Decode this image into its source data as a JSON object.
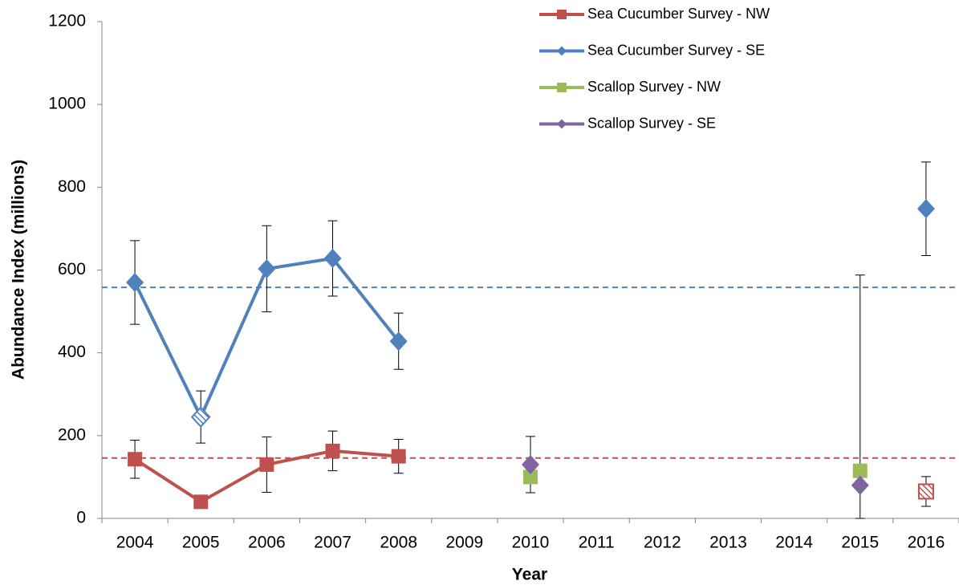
{
  "chart_data": {
    "type": "line",
    "x_label": "Year",
    "y_label": "Abundance Index (millions)",
    "categories": [
      "2004",
      "2005",
      "2006",
      "2007",
      "2008",
      "2009",
      "2010",
      "2011",
      "2012",
      "2013",
      "2014",
      "2015",
      "2016"
    ],
    "ylim": [
      0,
      1200
    ],
    "yticks": [
      0,
      200,
      400,
      600,
      800,
      1000,
      1200
    ],
    "legend": "top-right",
    "series": [
      {
        "name": "Sea Cucumber Survey - NW",
        "color": "#c0504d",
        "marker": "square",
        "line": true,
        "values": [
          143,
          40,
          130,
          163,
          150,
          null,
          null,
          null,
          null,
          null,
          null,
          null,
          65
        ],
        "errors": [
          46,
          null,
          67,
          48,
          41,
          null,
          null,
          null,
          null,
          null,
          null,
          null,
          36
        ],
        "hatched": [
          false,
          false,
          false,
          false,
          false,
          false,
          false,
          false,
          false,
          false,
          false,
          false,
          true
        ]
      },
      {
        "name": "Sea Cucumber Survey - SE",
        "color": "#4f81bd",
        "marker": "diamond",
        "line": true,
        "values": [
          570,
          245,
          603,
          628,
          428,
          null,
          null,
          null,
          null,
          null,
          null,
          null,
          748
        ],
        "errors": [
          101,
          63,
          104,
          91,
          68,
          null,
          null,
          null,
          null,
          null,
          null,
          null,
          113
        ],
        "hatched": [
          false,
          true,
          false,
          false,
          false,
          false,
          false,
          false,
          false,
          false,
          false,
          false,
          false
        ]
      },
      {
        "name": "Scallop Survey - NW",
        "color": "#9bbb59",
        "marker": "square",
        "line": false,
        "values": [
          null,
          null,
          null,
          null,
          null,
          null,
          100,
          null,
          null,
          null,
          null,
          115,
          null
        ],
        "errors": [
          null,
          null,
          null,
          null,
          null,
          null,
          null,
          null,
          null,
          null,
          null,
          473,
          null
        ],
        "hatched": [
          false,
          false,
          false,
          false,
          false,
          false,
          false,
          false,
          false,
          false,
          false,
          false,
          false
        ]
      },
      {
        "name": "Scallop Survey - SE",
        "color": "#8064a2",
        "marker": "diamond",
        "line": false,
        "values": [
          null,
          null,
          null,
          null,
          null,
          null,
          130,
          null,
          null,
          null,
          null,
          80,
          null
        ],
        "errors": [
          null,
          null,
          null,
          null,
          null,
          null,
          68,
          null,
          null,
          null,
          null,
          null,
          null
        ],
        "hatched": [
          false,
          false,
          false,
          false,
          false,
          false,
          false,
          false,
          false,
          false,
          false,
          false,
          false
        ]
      }
    ],
    "reference_lines": [
      {
        "value": 558,
        "color": "#4f81bd"
      },
      {
        "value": 146,
        "color": "#c0504d"
      }
    ]
  }
}
